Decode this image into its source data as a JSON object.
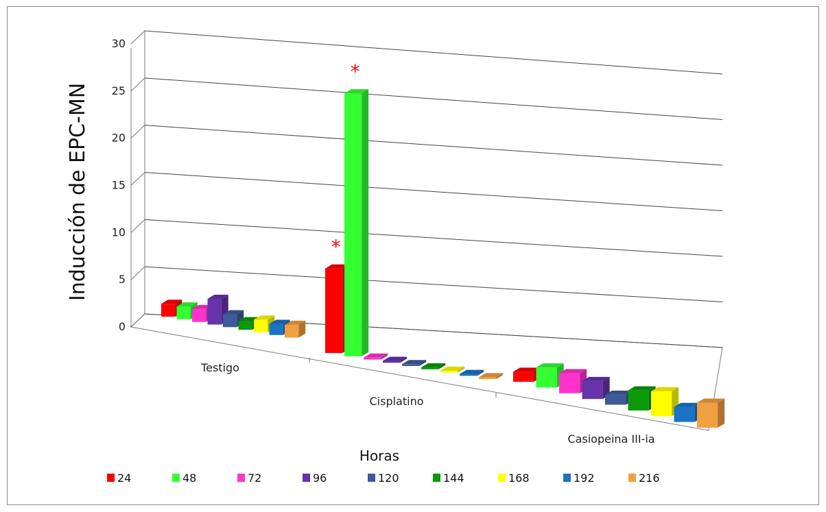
{
  "chart_data": {
    "type": "bar",
    "xlabel": "Horas",
    "ylabel": "Inducción de EPC-MN",
    "ylim": [
      0,
      30
    ],
    "yticks": [
      "0",
      "5",
      "10",
      "15",
      "20",
      "25",
      "30"
    ],
    "grid": true,
    "legend_position": "bottom",
    "categories": [
      "Testigo",
      "Cisplatino",
      "Casiopeina III-ia"
    ],
    "series": [
      {
        "name": "24",
        "color": "#ff0000",
        "values": [
          1.5,
          9.0,
          1.0
        ]
      },
      {
        "name": "48",
        "color": "#33ff33",
        "values": [
          1.5,
          28.0,
          2.0
        ]
      },
      {
        "name": "72",
        "color": "#ff33cc",
        "values": [
          1.5,
          0.2,
          2.0
        ]
      },
      {
        "name": "96",
        "color": "#6633aa",
        "values": [
          3.0,
          0.2,
          1.8
        ]
      },
      {
        "name": "120",
        "color": "#3d5a99",
        "values": [
          1.5,
          0.2,
          1.0
        ]
      },
      {
        "name": "144",
        "color": "#0a9a0a",
        "values": [
          1.0,
          0.2,
          2.0
        ]
      },
      {
        "name": "168",
        "color": "#ffff00",
        "values": [
          1.5,
          0.2,
          2.5
        ]
      },
      {
        "name": "192",
        "color": "#1a73c4",
        "values": [
          1.3,
          0.2,
          1.5
        ]
      },
      {
        "name": "216",
        "color": "#f0a040",
        "values": [
          1.5,
          0.2,
          2.5
        ]
      }
    ],
    "annotations": [
      {
        "text": "*",
        "category": "Cisplatino",
        "series": "24"
      },
      {
        "text": "*",
        "category": "Cisplatino",
        "series": "48"
      }
    ]
  }
}
